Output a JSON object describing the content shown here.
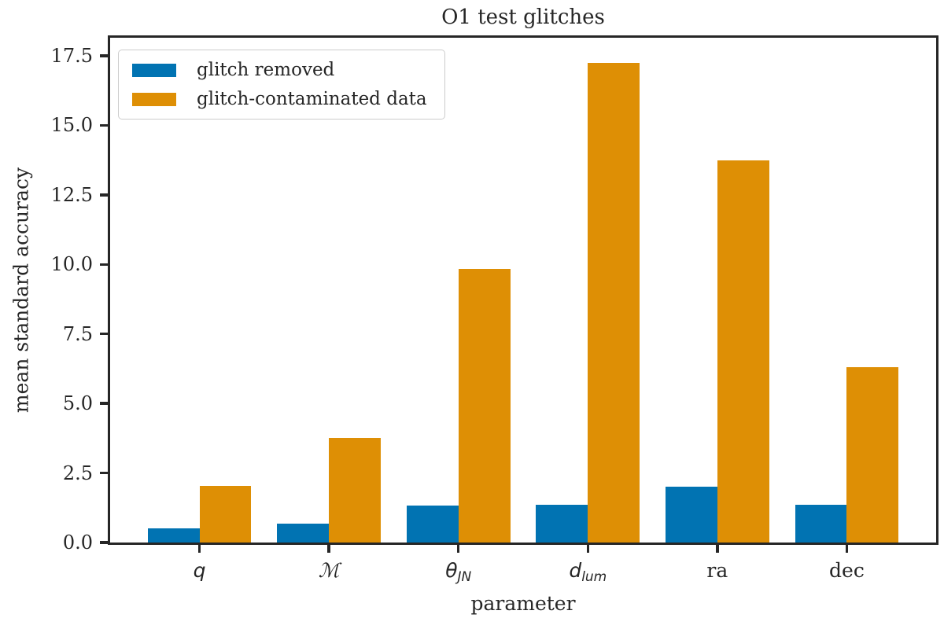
{
  "chart_data": {
    "type": "bar",
    "title": "O1 test glitches",
    "xlabel": "parameter",
    "ylabel": "mean standard accuracy",
    "categories": [
      {
        "label": "q",
        "base": "q",
        "sub": "",
        "style": "math"
      },
      {
        "label": "ℳ",
        "base": "ℳ",
        "sub": "",
        "style": "scriptm"
      },
      {
        "label": "θ_JN",
        "base": "θ",
        "sub": "JN",
        "style": "math"
      },
      {
        "label": "d_lum",
        "base": "d",
        "sub": "lum",
        "style": "math"
      },
      {
        "label": "ra",
        "base": "ra",
        "sub": "",
        "style": "plain"
      },
      {
        "label": "dec",
        "base": "dec",
        "sub": "",
        "style": "plain"
      }
    ],
    "series": [
      {
        "name": "glitch removed",
        "color": "#0173b2",
        "values": [
          0.5,
          0.67,
          1.32,
          1.35,
          2.0,
          1.35
        ]
      },
      {
        "name": "glitch-contaminated data",
        "color": "#de8f05",
        "values": [
          2.05,
          3.75,
          9.85,
          17.25,
          13.75,
          6.3
        ]
      }
    ],
    "yticks": [
      0.0,
      2.5,
      5.0,
      7.5,
      10.0,
      12.5,
      15.0,
      17.5
    ],
    "ytick_labels": [
      "0.0",
      "2.5",
      "5.0",
      "7.5",
      "10.0",
      "12.5",
      "15.0",
      "17.5"
    ],
    "ylim": [
      0,
      18.15
    ],
    "xlim": [
      -0.69,
      5.69
    ],
    "bar_width": 0.4,
    "grid": false,
    "legend_position": "upper left",
    "axis_color": "#262626"
  }
}
